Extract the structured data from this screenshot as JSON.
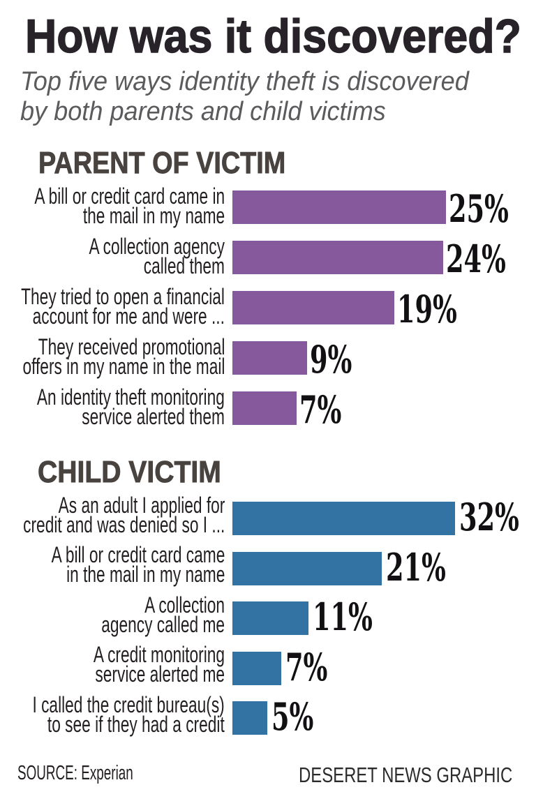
{
  "title": "How was it discovered?",
  "subtitle": "Top five ways identity theft is discovered\nby both parents and child victims",
  "footer": {
    "source": "SOURCE: Experian",
    "credit": "DESERET NEWS GRAPHIC"
  },
  "colors": {
    "background": "#ffffff",
    "title_text": "#272328",
    "subtitle_text": "#5b5b5e",
    "heading_text": "#494340",
    "label_text": "#231f20",
    "value_text": "#121012",
    "parent_bars": "#86599d",
    "child_bars": "#3373a4"
  },
  "chart_data": {
    "type": "bar",
    "orientation": "horizontal",
    "unit": "%",
    "value_suffix": "%",
    "title": "How was it discovered?",
    "subtitle": "Top five ways identity theft is discovered by both parents and child victims",
    "legend": "none",
    "grid": false,
    "groups": [
      {
        "heading": "PARENT OF VICTIM",
        "bar_color": "#86599d",
        "bars": [
          {
            "label_lines": [
              "A bill or credit card came in",
              "the mail in my name"
            ],
            "value": 25
          },
          {
            "label_lines": [
              "A collection agency",
              "called them"
            ],
            "value": 24
          },
          {
            "label_lines": [
              "They tried to open a financial",
              "account for me and were ..."
            ],
            "value": 19
          },
          {
            "label_lines": [
              "They received promotional",
              "offers in my name in the mail"
            ],
            "value": 9
          },
          {
            "label_lines": [
              "An identity theft monitoring",
              "service alerted them"
            ],
            "value": 7
          }
        ]
      },
      {
        "heading": "CHILD VICTIM",
        "bar_color": "#3373a4",
        "bars": [
          {
            "label_lines": [
              "As an adult I applied for",
              "credit and was denied so I ..."
            ],
            "value": 32
          },
          {
            "label_lines": [
              "A bill or credit card came",
              "in the mail in my name"
            ],
            "value": 21
          },
          {
            "label_lines": [
              "A collection",
              "agency called me"
            ],
            "value": 11
          },
          {
            "label_lines": [
              "A credit monitoring",
              "service alerted me"
            ],
            "value": 7
          },
          {
            "label_lines": [
              "I called the credit bureau(s)",
              "to see if they had a credit"
            ],
            "value": 5
          }
        ]
      }
    ]
  }
}
